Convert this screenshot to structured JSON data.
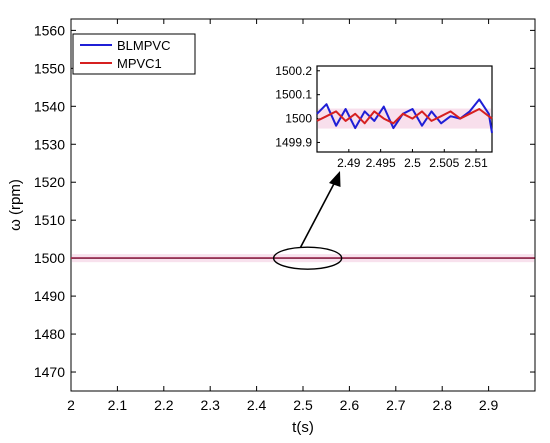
{
  "chart_data": [
    {
      "type": "line",
      "xlabel": "t(s)",
      "ylabel": "ω (rpm)",
      "xlim": [
        2.0,
        3.0
      ],
      "ylim": [
        1465,
        1563
      ],
      "xticks": [
        2,
        2.1,
        2.2,
        2.3,
        2.4,
        2.5,
        2.6,
        2.7,
        2.8,
        2.9
      ],
      "xtick_labels": [
        "2",
        "2.1",
        "2.2",
        "2.3",
        "2.4",
        "2.5",
        "2.6",
        "2.7",
        "2.8",
        "2.9"
      ],
      "yticks": [
        1470,
        1480,
        1490,
        1500,
        1510,
        1520,
        1530,
        1540,
        1550,
        1560
      ],
      "ytick_labels": [
        "1470",
        "1480",
        "1490",
        "1500",
        "1510",
        "1520",
        "1530",
        "1540",
        "1550",
        "1560"
      ],
      "legend_position": "top-left",
      "grid": false,
      "series": [
        {
          "name": "BLMPVC",
          "color": "#1f1fd6",
          "x": [
            2.0,
            2.999
          ],
          "y": [
            1500,
            1500
          ]
        },
        {
          "name": "MPVC1",
          "color": "#d62020",
          "x": [
            2.0,
            2.999
          ],
          "y": [
            1500,
            1500
          ]
        }
      ],
      "annotation": {
        "type": "ellipse",
        "center_x": 2.51,
        "center_y": 1500,
        "points_to": "inset"
      }
    },
    {
      "type": "line",
      "inset": true,
      "xlim": [
        2.485,
        2.5125
      ],
      "ylim": [
        1499.86,
        1500.22
      ],
      "xticks": [
        2.49,
        2.495,
        2.5,
        2.505,
        2.51
      ],
      "xtick_labels": [
        "2.49",
        "2.495",
        "2.5",
        "2.505",
        "2.51"
      ],
      "yticks": [
        1499.9,
        1500,
        1500.1,
        1500.2
      ],
      "ytick_labels": [
        "1499.9",
        "1500",
        "1500.1",
        "1500.2"
      ],
      "series": [
        {
          "name": "BLMPVC",
          "color": "#1f1fd6",
          "x": [
            2.485,
            2.4865,
            2.488,
            2.4895,
            2.491,
            2.4925,
            2.494,
            2.4955,
            2.497,
            2.4985,
            2.5,
            2.5015,
            2.503,
            2.5045,
            2.506,
            2.5075,
            2.509,
            2.5105,
            2.512,
            2.5125
          ],
          "y": [
            1500.02,
            1500.06,
            1499.97,
            1500.04,
            1499.96,
            1500.03,
            1499.99,
            1500.05,
            1499.96,
            1500.02,
            1500.04,
            1499.97,
            1500.03,
            1499.98,
            1500.01,
            1500.0,
            1500.03,
            1500.08,
            1500.02,
            1499.94
          ]
        },
        {
          "name": "MPVC1",
          "color": "#d62020",
          "x": [
            2.485,
            2.4865,
            2.488,
            2.4895,
            2.491,
            2.4925,
            2.494,
            2.4955,
            2.497,
            2.4985,
            2.5,
            2.5015,
            2.503,
            2.5045,
            2.506,
            2.5075,
            2.509,
            2.5105,
            2.512,
            2.5125
          ],
          "y": [
            1499.99,
            1500.01,
            1500.03,
            1499.99,
            1500.02,
            1499.98,
            1500.03,
            1500.0,
            1499.98,
            1500.02,
            1500.0,
            1500.03,
            1499.99,
            1500.01,
            1500.03,
            1500.0,
            1500.02,
            1500.04,
            1500.01,
            1500.0
          ]
        }
      ]
    }
  ]
}
